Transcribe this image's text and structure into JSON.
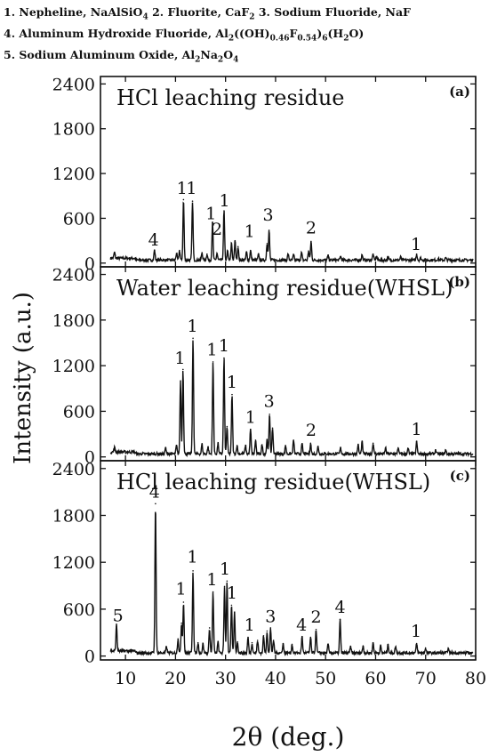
{
  "legend": {
    "lines": [
      [
        {
          "t": "1. Nepheline, NaAlSiO"
        },
        {
          "t": "4",
          "sub": true
        },
        {
          "t": "  2. Fluorite, CaF"
        },
        {
          "t": "2",
          "sub": true
        },
        {
          "t": "  3. Sodium Fluoride, NaF"
        }
      ],
      [
        {
          "t": "4. Aluminum Hydroxide Fluoride, Al"
        },
        {
          "t": "2",
          "sub": true
        },
        {
          "t": "((OH)"
        },
        {
          "t": "0.46",
          "sub": true
        },
        {
          "t": "F"
        },
        {
          "t": "0.54",
          "sub": true
        },
        {
          "t": ")"
        },
        {
          "t": "6",
          "sub": true
        },
        {
          "t": "(H"
        },
        {
          "t": "2",
          "sub": true
        },
        {
          "t": "O)"
        }
      ],
      [
        {
          "t": "5. Sodium Aluminum Oxide, Al"
        },
        {
          "t": "2",
          "sub": true
        },
        {
          "t": "Na"
        },
        {
          "t": "2",
          "sub": true
        },
        {
          "t": "O"
        },
        {
          "t": "4",
          "sub": true
        }
      ]
    ]
  },
  "chart_data": {
    "type": "line",
    "xlabel": "2θ (deg.)",
    "ylabel": "Intensity (a.u.)",
    "xlim": [
      5,
      80
    ],
    "ylim": [
      -50,
      2500
    ],
    "x_ticks": [
      10,
      20,
      30,
      40,
      50,
      60,
      70,
      80
    ],
    "y_ticks": [
      0,
      600,
      1200,
      1800,
      2400
    ],
    "color": "#111111",
    "panels": [
      {
        "title": "HCl leaching residue",
        "panel_label": "(a)",
        "baseline": 40,
        "peaks": [
          {
            "x": 7.8,
            "y": 120
          },
          {
            "x": 15.8,
            "y": 175
          },
          {
            "x": 20.2,
            "y": 130
          },
          {
            "x": 20.8,
            "y": 170
          },
          {
            "x": 21.6,
            "y": 850
          },
          {
            "x": 23.4,
            "y": 830
          },
          {
            "x": 25.3,
            "y": 140
          },
          {
            "x": 26.3,
            "y": 120
          },
          {
            "x": 27.4,
            "y": 540
          },
          {
            "x": 28.3,
            "y": 130
          },
          {
            "x": 29.7,
            "y": 700
          },
          {
            "x": 30.4,
            "y": 160
          },
          {
            "x": 31.2,
            "y": 270
          },
          {
            "x": 31.9,
            "y": 300
          },
          {
            "x": 32.5,
            "y": 220
          },
          {
            "x": 34.2,
            "y": 150
          },
          {
            "x": 35.0,
            "y": 170
          },
          {
            "x": 36.6,
            "y": 120
          },
          {
            "x": 38.3,
            "y": 260
          },
          {
            "x": 38.7,
            "y": 440
          },
          {
            "x": 42.5,
            "y": 120
          },
          {
            "x": 43.6,
            "y": 110
          },
          {
            "x": 45.2,
            "y": 140
          },
          {
            "x": 46.6,
            "y": 160
          },
          {
            "x": 47.1,
            "y": 290
          },
          {
            "x": 50.5,
            "y": 100
          },
          {
            "x": 53.0,
            "y": 90
          },
          {
            "x": 57.3,
            "y": 110
          },
          {
            "x": 59.5,
            "y": 120
          },
          {
            "x": 60.2,
            "y": 90
          },
          {
            "x": 62.5,
            "y": 80
          },
          {
            "x": 65.0,
            "y": 80
          },
          {
            "x": 68.2,
            "y": 120
          },
          {
            "x": 69.0,
            "y": 70
          },
          {
            "x": 72.5,
            "y": 60
          },
          {
            "x": 74.0,
            "y": 70
          }
        ],
        "annotations": [
          {
            "text": "4",
            "x": 15.6,
            "y": 190
          },
          {
            "text": "1",
            "x": 21.3,
            "y": 880
          },
          {
            "text": "1",
            "x": 23.2,
            "y": 880
          },
          {
            "text": "1",
            "x": 27.1,
            "y": 540
          },
          {
            "text": "2",
            "x": 28.3,
            "y": 330
          },
          {
            "text": "1",
            "x": 29.8,
            "y": 710
          },
          {
            "text": "1",
            "x": 34.8,
            "y": 300
          },
          {
            "text": "3",
            "x": 38.5,
            "y": 520
          },
          {
            "text": "2",
            "x": 47.1,
            "y": 350
          },
          {
            "text": "1",
            "x": 68.1,
            "y": 130
          }
        ]
      },
      {
        "title": "Water leaching residue(WHSL)",
        "panel_label": "(b)",
        "baseline": 40,
        "peaks": [
          {
            "x": 7.8,
            "y": 100
          },
          {
            "x": 18.0,
            "y": 120
          },
          {
            "x": 20.2,
            "y": 150
          },
          {
            "x": 21.0,
            "y": 1000
          },
          {
            "x": 21.5,
            "y": 1150
          },
          {
            "x": 23.5,
            "y": 1560
          },
          {
            "x": 25.3,
            "y": 170
          },
          {
            "x": 26.5,
            "y": 130
          },
          {
            "x": 27.5,
            "y": 1250
          },
          {
            "x": 28.5,
            "y": 180
          },
          {
            "x": 29.7,
            "y": 1300
          },
          {
            "x": 30.3,
            "y": 400
          },
          {
            "x": 31.3,
            "y": 820
          },
          {
            "x": 32.3,
            "y": 150
          },
          {
            "x": 34.0,
            "y": 150
          },
          {
            "x": 35.0,
            "y": 360
          },
          {
            "x": 36.0,
            "y": 220
          },
          {
            "x": 37.3,
            "y": 160
          },
          {
            "x": 38.3,
            "y": 230
          },
          {
            "x": 38.8,
            "y": 560
          },
          {
            "x": 39.4,
            "y": 380
          },
          {
            "x": 42.0,
            "y": 150
          },
          {
            "x": 43.6,
            "y": 220
          },
          {
            "x": 45.3,
            "y": 170
          },
          {
            "x": 47.0,
            "y": 180
          },
          {
            "x": 48.5,
            "y": 140
          },
          {
            "x": 53.0,
            "y": 120
          },
          {
            "x": 56.5,
            "y": 160
          },
          {
            "x": 57.3,
            "y": 200
          },
          {
            "x": 59.5,
            "y": 180
          },
          {
            "x": 62.0,
            "y": 120
          },
          {
            "x": 64.5,
            "y": 120
          },
          {
            "x": 66.5,
            "y": 110
          },
          {
            "x": 68.2,
            "y": 200
          },
          {
            "x": 72.0,
            "y": 90
          },
          {
            "x": 74.0,
            "y": 90
          }
        ],
        "annotations": [
          {
            "text": "1",
            "x": 20.9,
            "y": 1180
          },
          {
            "text": "1",
            "x": 23.4,
            "y": 1600
          },
          {
            "text": "1",
            "x": 27.3,
            "y": 1290
          },
          {
            "text": "1",
            "x": 29.7,
            "y": 1340
          },
          {
            "text": "1",
            "x": 31.3,
            "y": 860
          },
          {
            "text": "1",
            "x": 35.0,
            "y": 400
          },
          {
            "text": "3",
            "x": 38.7,
            "y": 610
          },
          {
            "text": "2",
            "x": 47.1,
            "y": 230
          },
          {
            "text": "1",
            "x": 68.2,
            "y": 240
          }
        ]
      },
      {
        "title": "HCl leaching residue(WHSL)",
        "panel_label": "(c)",
        "baseline": 40,
        "peaks": [
          {
            "x": 8.2,
            "y": 380
          },
          {
            "x": 16.0,
            "y": 1950
          },
          {
            "x": 18.2,
            "y": 120
          },
          {
            "x": 20.5,
            "y": 220
          },
          {
            "x": 21.2,
            "y": 420
          },
          {
            "x": 21.6,
            "y": 690
          },
          {
            "x": 23.5,
            "y": 1090
          },
          {
            "x": 24.5,
            "y": 170
          },
          {
            "x": 25.5,
            "y": 160
          },
          {
            "x": 26.8,
            "y": 360
          },
          {
            "x": 27.5,
            "y": 820
          },
          {
            "x": 28.5,
            "y": 180
          },
          {
            "x": 29.8,
            "y": 890
          },
          {
            "x": 30.3,
            "y": 960
          },
          {
            "x": 31.2,
            "y": 650
          },
          {
            "x": 31.8,
            "y": 560
          },
          {
            "x": 32.4,
            "y": 180
          },
          {
            "x": 34.5,
            "y": 240
          },
          {
            "x": 35.3,
            "y": 170
          },
          {
            "x": 36.4,
            "y": 200
          },
          {
            "x": 37.6,
            "y": 260
          },
          {
            "x": 38.3,
            "y": 320
          },
          {
            "x": 39.0,
            "y": 360
          },
          {
            "x": 39.6,
            "y": 200
          },
          {
            "x": 41.5,
            "y": 160
          },
          {
            "x": 43.3,
            "y": 150
          },
          {
            "x": 45.3,
            "y": 250
          },
          {
            "x": 47.0,
            "y": 240
          },
          {
            "x": 48.1,
            "y": 340
          },
          {
            "x": 50.5,
            "y": 150
          },
          {
            "x": 52.9,
            "y": 470
          },
          {
            "x": 55.0,
            "y": 120
          },
          {
            "x": 57.5,
            "y": 130
          },
          {
            "x": 59.5,
            "y": 170
          },
          {
            "x": 61.0,
            "y": 130
          },
          {
            "x": 62.5,
            "y": 150
          },
          {
            "x": 64.0,
            "y": 120
          },
          {
            "x": 68.2,
            "y": 160
          },
          {
            "x": 70.0,
            "y": 100
          },
          {
            "x": 74.5,
            "y": 100
          }
        ],
        "annotations": [
          {
            "text": "5",
            "x": 8.5,
            "y": 400
          },
          {
            "text": "4",
            "x": 15.8,
            "y": 1980
          },
          {
            "text": "1",
            "x": 21.1,
            "y": 740
          },
          {
            "text": "1",
            "x": 23.4,
            "y": 1150
          },
          {
            "text": "1",
            "x": 27.3,
            "y": 860
          },
          {
            "text": "1",
            "x": 29.9,
            "y": 1000
          },
          {
            "text": "1",
            "x": 31.3,
            "y": 690
          },
          {
            "text": "1",
            "x": 34.8,
            "y": 280
          },
          {
            "text": "3",
            "x": 39.0,
            "y": 390
          },
          {
            "text": "4",
            "x": 45.2,
            "y": 280
          },
          {
            "text": "2",
            "x": 48.1,
            "y": 380
          },
          {
            "text": "4",
            "x": 52.9,
            "y": 510
          },
          {
            "text": "1",
            "x": 68.1,
            "y": 200
          }
        ]
      }
    ]
  }
}
